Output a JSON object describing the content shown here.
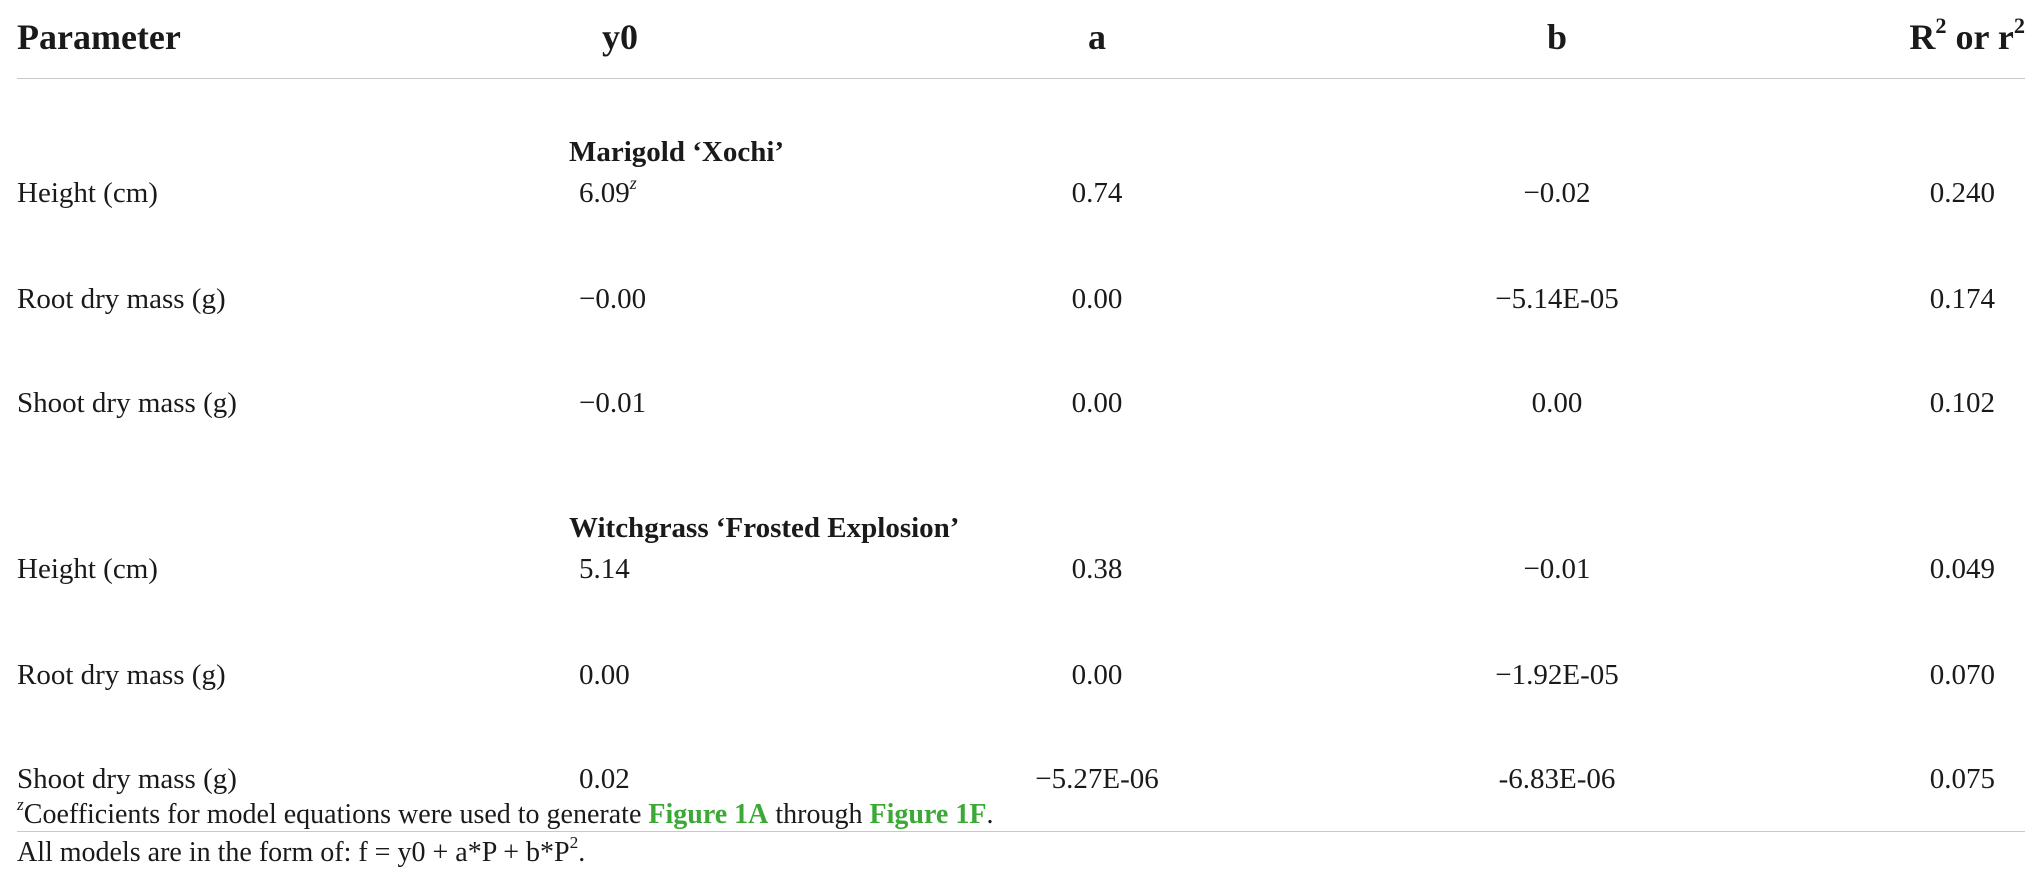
{
  "header": {
    "parameter": "Parameter",
    "y0": "y0",
    "a": "a",
    "b": "b",
    "r2_base1": "R",
    "r2_sup1": "2",
    "r2_mid": " or r",
    "r2_sup2": "2"
  },
  "sections": [
    {
      "label": "Marigold ‘Xochi’",
      "rows": [
        {
          "parameter": "Height (cm)",
          "y0": "6.09",
          "y0_note": "z",
          "a": "0.74",
          "b": "−0.02",
          "r2": "0.240"
        },
        {
          "parameter": "Root dry mass (g)",
          "y0": "−0.00",
          "a": "0.00",
          "b": "−5.14E-05",
          "r2": "0.174"
        },
        {
          "parameter": "Shoot dry mass (g)",
          "y0": "−0.01",
          "a": "0.00",
          "b": "0.00",
          "r2": "0.102"
        }
      ]
    },
    {
      "label": "Witchgrass ‘Frosted Explosion’",
      "rows": [
        {
          "parameter": "Height (cm)",
          "y0": "5.14",
          "a": "0.38",
          "b": "−0.01",
          "r2": "0.049"
        },
        {
          "parameter": "Root dry mass (g)",
          "y0": "0.00",
          "a": "0.00",
          "b": "−1.92E-05",
          "r2": "0.070"
        },
        {
          "parameter": "Shoot dry mass (g)",
          "y0": "0.02",
          "a": "−5.27E-06",
          "b": "-6.83E-06",
          "r2": "0.075"
        }
      ]
    }
  ],
  "footnotes": {
    "note1_marker": "z",
    "note1_text_a": "Coefficients for model equations were used to generate ",
    "note1_link1": "Figure 1A",
    "note1_text_b": " through ",
    "note1_link2": "Figure 1F",
    "note1_text_c": ".",
    "note2_text": "All models are in the form of: f = y0 + a*P + b*P",
    "note2_sup": "2",
    "note2_end": "."
  },
  "colors": {
    "link": "#3aaa35",
    "rule": "#c8c8c8",
    "text": "#1a1a1a"
  }
}
